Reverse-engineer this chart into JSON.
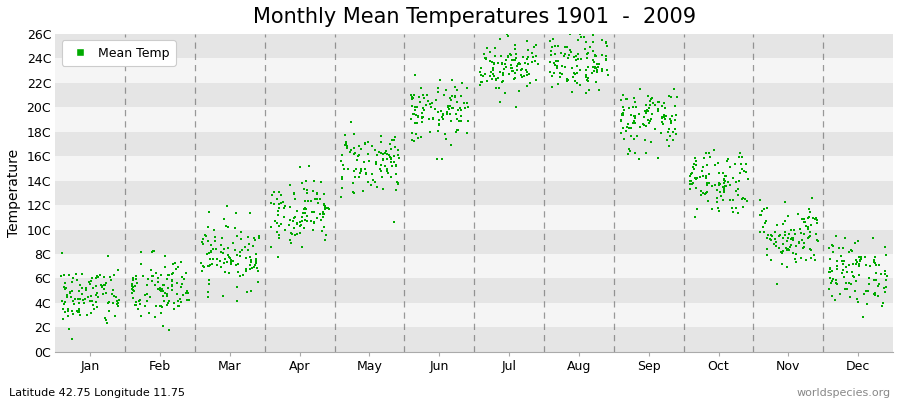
{
  "title": "Monthly Mean Temperatures 1901  -  2009",
  "subtitle": "Latitude 42.75 Longitude 11.75",
  "ylabel": "Temperature",
  "watermark": "worldspecies.org",
  "ytick_labels": [
    "0C",
    "2C",
    "4C",
    "6C",
    "8C",
    "10C",
    "12C",
    "14C",
    "16C",
    "18C",
    "20C",
    "22C",
    "24C",
    "26C"
  ],
  "ytick_values": [
    0,
    2,
    4,
    6,
    8,
    10,
    12,
    14,
    16,
    18,
    20,
    22,
    24,
    26
  ],
  "ylim": [
    0,
    26
  ],
  "months": [
    "Jan",
    "Feb",
    "Mar",
    "Apr",
    "May",
    "Jun",
    "Jul",
    "Aug",
    "Sep",
    "Oct",
    "Nov",
    "Dec"
  ],
  "monthly_mean_temps": [
    4.5,
    5.0,
    8.0,
    11.5,
    15.5,
    19.5,
    23.5,
    23.5,
    19.0,
    14.0,
    9.5,
    6.5
  ],
  "monthly_std_temps": [
    1.3,
    1.5,
    1.4,
    1.4,
    1.4,
    1.3,
    1.2,
    1.2,
    1.4,
    1.4,
    1.4,
    1.4
  ],
  "n_years": 109,
  "dot_color": "#00aa00",
  "dot_size": 3,
  "band_color_light": "#f5f5f5",
  "band_color_dark": "#e5e5e5",
  "dashed_line_color": "#666666",
  "legend_label": "Mean Temp",
  "title_fontsize": 15,
  "axis_fontsize": 10,
  "tick_fontsize": 9
}
